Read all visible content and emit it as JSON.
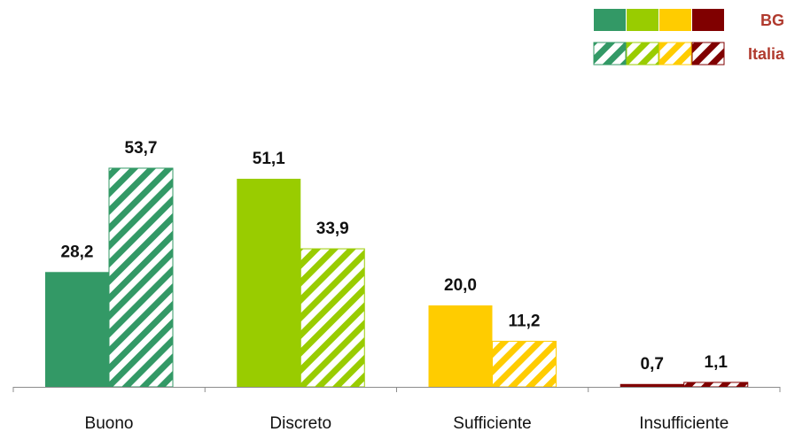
{
  "chart_data": {
    "type": "bar",
    "categories": [
      "Buono",
      "Discreto",
      "Sufficiente",
      "Insufficiente"
    ],
    "series": [
      {
        "name": "BG",
        "values": [
          28.2,
          51.1,
          20.0,
          0.7
        ],
        "value_labels": [
          "28,2",
          "51,1",
          "20,0",
          "0,7"
        ],
        "pattern": "solid"
      },
      {
        "name": "Italia",
        "values": [
          53.7,
          33.9,
          11.2,
          1.1
        ],
        "value_labels": [
          "53,7",
          "33,9",
          "11,2",
          "1,1"
        ],
        "pattern": "diagonal-hatch"
      }
    ],
    "category_colors": [
      "#339966",
      "#99CC00",
      "#FFCC00",
      "#800000"
    ],
    "legend_text_color": "#B03A2E",
    "ylim": [
      0,
      60
    ],
    "grid": false,
    "legend_position": "top-right"
  }
}
